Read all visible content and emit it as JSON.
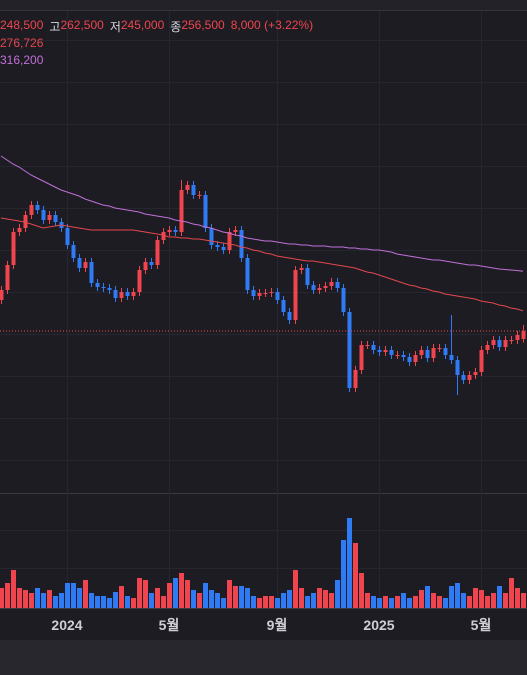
{
  "chart_data": {
    "type": "candlestick",
    "legend": {
      "open": "248,500",
      "high_label": "고",
      "high": "262,500",
      "low_label": "저",
      "low": "245,000",
      "close_label": "종",
      "close": "256,500",
      "change": "8,000 (+3.22%)",
      "ma": [
        "276,726",
        "316,200"
      ]
    },
    "categories": [
      null,
      null,
      null,
      null,
      null,
      null,
      null,
      null,
      null,
      null,
      null,
      "2024",
      null,
      null,
      null,
      null,
      null,
      null,
      null,
      null,
      null,
      null,
      null,
      null,
      null,
      null,
      null,
      null,
      "5월",
      null,
      null,
      null,
      null,
      null,
      null,
      null,
      null,
      null,
      null,
      null,
      null,
      null,
      null,
      null,
      null,
      null,
      "9월",
      null,
      null,
      null,
      null,
      null,
      null,
      null,
      null,
      null,
      null,
      null,
      null,
      null,
      null,
      null,
      null,
      "2025",
      null,
      null,
      null,
      null,
      null,
      null,
      null,
      null,
      null,
      null,
      null,
      null,
      null,
      null,
      null,
      null,
      "5월",
      null,
      null,
      null,
      null,
      null,
      null,
      null
    ],
    "open": [
      287500,
      297500,
      322500,
      355500,
      359500,
      372500,
      382500,
      377500,
      367500,
      372500,
      365500,
      359500,
      342500,
      329500,
      319500,
      325500,
      304500,
      300500,
      299500,
      297500,
      289500,
      295500,
      291500,
      295500,
      317500,
      325500,
      322500,
      347500,
      355500,
      357500,
      355500,
      397500,
      402500,
      392500,
      392500,
      359500,
      342500,
      340500,
      337500,
      355500,
      357500,
      329500,
      297500,
      291500,
      294500,
      294500,
      295500,
      287500,
      275500,
      267500,
      317500,
      319500,
      302500,
      297500,
      299500,
      301500,
      305500,
      299500,
      275500,
      199500,
      217500,
      242500,
      242500,
      237500,
      235500,
      237500,
      232500,
      232500,
      230500,
      225500,
      232500,
      237500,
      229500,
      239500,
      239500,
      232500,
      227500,
      212500,
      207500,
      212500,
      215500,
      237500,
      242500,
      247500,
      240500,
      247500,
      247500,
      248500
    ],
    "high": [
      301500,
      326500,
      359500,
      363500,
      376500,
      386500,
      386500,
      381500,
      376500,
      376500,
      369500,
      363500,
      346500,
      333500,
      329500,
      329500,
      308500,
      304500,
      303500,
      301500,
      299500,
      299500,
      299500,
      321500,
      329500,
      329500,
      351500,
      359500,
      361500,
      361500,
      407500,
      406500,
      406500,
      396500,
      396500,
      363500,
      346500,
      344500,
      359500,
      361500,
      361500,
      333500,
      301500,
      298500,
      298500,
      299500,
      299500,
      291500,
      279500,
      321500,
      323500,
      323500,
      306500,
      303500,
      305500,
      309500,
      309500,
      303500,
      279500,
      221500,
      246500,
      246500,
      246500,
      241500,
      241500,
      241500,
      236500,
      236500,
      234500,
      236500,
      241500,
      241500,
      243500,
      243500,
      243500,
      272500,
      231500,
      216500,
      216500,
      219500,
      241500,
      246500,
      251500,
      251500,
      251500,
      251500,
      256500,
      262500
    ],
    "low": [
      283500,
      293500,
      318500,
      351500,
      355500,
      368500,
      373500,
      363500,
      363500,
      361500,
      355500,
      338500,
      325500,
      315500,
      315500,
      300500,
      296500,
      295500,
      293500,
      285500,
      285500,
      287500,
      287500,
      291500,
      313500,
      318500,
      318500,
      343500,
      351500,
      351500,
      351500,
      393500,
      388500,
      388500,
      355500,
      338500,
      336500,
      333500,
      333500,
      351500,
      325500,
      293500,
      287500,
      287500,
      290500,
      290500,
      283500,
      271500,
      263500,
      263500,
      313500,
      298500,
      293500,
      293500,
      295500,
      297500,
      295500,
      271500,
      195500,
      195500,
      213500,
      238500,
      233500,
      231500,
      231500,
      228500,
      228500,
      226500,
      221500,
      221500,
      228500,
      225500,
      225500,
      235500,
      228500,
      223500,
      192500,
      203500,
      203500,
      208500,
      211500,
      233500,
      238500,
      236500,
      236500,
      243500,
      243500,
      245000
    ],
    "close": [
      297500,
      322500,
      355500,
      359500,
      372500,
      382500,
      377500,
      367500,
      372500,
      365500,
      359500,
      342500,
      329500,
      319500,
      325500,
      304500,
      300500,
      299500,
      297500,
      289500,
      295500,
      291500,
      295500,
      317500,
      325500,
      322500,
      347500,
      355500,
      357500,
      355500,
      397500,
      402500,
      392500,
      392500,
      359500,
      342500,
      340500,
      337500,
      355500,
      357500,
      329500,
      297500,
      291500,
      294500,
      294500,
      295500,
      287500,
      275500,
      267500,
      317500,
      319500,
      302500,
      297500,
      299500,
      301500,
      305500,
      299500,
      275500,
      199500,
      217500,
      242500,
      242500,
      237500,
      235500,
      237500,
      232500,
      232500,
      230500,
      225500,
      232500,
      237500,
      229500,
      239500,
      239500,
      232500,
      227500,
      212500,
      207500,
      212500,
      215500,
      237500,
      242500,
      247500,
      240500,
      247500,
      247500,
      252500,
      256500
    ],
    "volume": [
      200000,
      250000,
      380000,
      200000,
      180000,
      150000,
      200000,
      150000,
      180000,
      120000,
      150000,
      250000,
      250000,
      200000,
      280000,
      150000,
      120000,
      120000,
      100000,
      160000,
      220000,
      120000,
      100000,
      300000,
      280000,
      150000,
      200000,
      120000,
      250000,
      300000,
      350000,
      280000,
      180000,
      150000,
      250000,
      180000,
      150000,
      100000,
      280000,
      220000,
      220000,
      200000,
      120000,
      100000,
      120000,
      120000,
      100000,
      150000,
      180000,
      380000,
      200000,
      120000,
      150000,
      200000,
      180000,
      150000,
      280000,
      680000,
      900000,
      650000,
      350000,
      150000,
      120000,
      100000,
      120000,
      100000,
      120000,
      150000,
      100000,
      120000,
      180000,
      220000,
      150000,
      120000,
      100000,
      220000,
      250000,
      150000,
      120000,
      200000,
      180000,
      120000,
      150000,
      220000,
      150000,
      300000,
      200000,
      150000
    ],
    "series": [
      {
        "color": "#e5484d",
        "values": [
          369500,
          368500,
          367500,
          366500,
          365500,
          363500,
          361500,
          359500,
          360500,
          361500,
          362500,
          361500,
          360500,
          359500,
          358500,
          357500,
          357500,
          357500,
          357500,
          357500,
          357500,
          357500,
          357500,
          356500,
          355500,
          354500,
          353500,
          352500,
          350500,
          350500,
          349500,
          349500,
          348500,
          348500,
          347500,
          346500,
          345500,
          344500,
          343500,
          342500,
          340500,
          339500,
          337500,
          336500,
          334500,
          333500,
          331500,
          330500,
          329500,
          328500,
          327500,
          326500,
          326500,
          325500,
          324500,
          323500,
          322500,
          321500,
          320500,
          319500,
          317500,
          315500,
          314500,
          312500,
          310500,
          308500,
          306500,
          304500,
          302500,
          301500,
          299500,
          298500,
          296500,
          295500,
          293500,
          292500,
          291500,
          290500,
          289500,
          288500,
          286500,
          285500,
          284500,
          282500,
          281500,
          279500,
          278500,
          276726
        ]
      },
      {
        "color": "#c270d8",
        "values": [
          431500,
          427500,
          423500,
          420500,
          416500,
          412500,
          409500,
          406500,
          403500,
          400500,
          397500,
          395500,
          393500,
          391500,
          388500,
          386500,
          384500,
          382500,
          381500,
          379500,
          378500,
          377500,
          376500,
          375500,
          373500,
          372500,
          371500,
          370500,
          369500,
          367500,
          366500,
          365500,
          363500,
          362500,
          360500,
          359500,
          357500,
          355500,
          354500,
          352500,
          351500,
          349500,
          348500,
          347500,
          346500,
          346500,
          345500,
          344500,
          343500,
          343500,
          342500,
          342500,
          341500,
          341500,
          341500,
          340500,
          340500,
          340500,
          339500,
          339500,
          338500,
          338500,
          337500,
          337500,
          336500,
          335500,
          333500,
          332500,
          331500,
          330500,
          329500,
          328500,
          327500,
          327500,
          326500,
          325500,
          324500,
          323500,
          322500,
          322500,
          321500,
          320500,
          319500,
          318500,
          318000,
          317500,
          317000,
          316200
        ]
      }
    ],
    "up_color": "#f0454e",
    "down_color": "#2f7bf5",
    "ylim": [
      99500,
      579500
    ],
    "volume_lim": [
      0,
      1130000
    ],
    "grid": true
  }
}
